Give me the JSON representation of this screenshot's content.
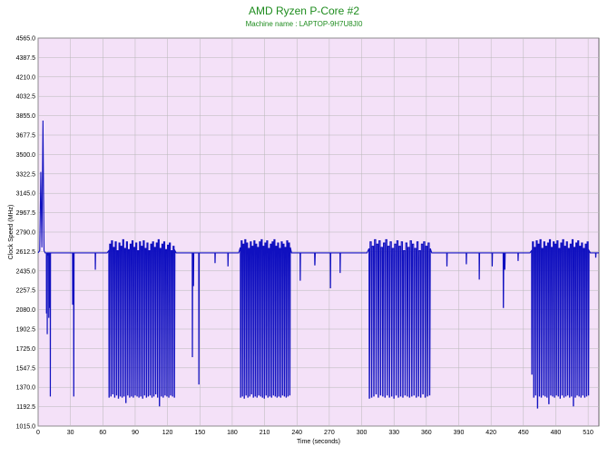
{
  "chart_data": {
    "type": "line",
    "title": "AMD Ryzen P-Core #2",
    "subtitle": "Machine name : LAPTOP-9H7U8JI0",
    "xlabel": "Time (seconds)",
    "ylabel": "Clock Speed (MHz)",
    "xlim": [
      0,
      520
    ],
    "ylim": [
      1015.0,
      4565.0
    ],
    "x_ticks": [
      0,
      30,
      60,
      90,
      120,
      150,
      180,
      210,
      240,
      270,
      300,
      330,
      360,
      390,
      420,
      450,
      480,
      510
    ],
    "y_ticks": [
      "1015.0",
      "1192.5",
      "1370.0",
      "1547.5",
      "1725.0",
      "1902.5",
      "2080.0",
      "2257.5",
      "2435.0",
      "2612.5",
      "2790.0",
      "2967.5",
      "3145.0",
      "3322.5",
      "3500.0",
      "3677.5",
      "3855.0",
      "4032.5",
      "4210.0",
      "4387.5",
      "4565.0"
    ],
    "grid": true,
    "series_color": "#1010c0",
    "baseline": 2600,
    "initial_spikes": [
      [
        0,
        2600
      ],
      [
        1.5,
        2620
      ],
      [
        2.5,
        3340
      ],
      [
        3.5,
        2650
      ],
      [
        4.5,
        3810
      ],
      [
        5.5,
        2620
      ],
      [
        6.5,
        2600
      ]
    ],
    "segments": [
      {
        "start": 7,
        "end": 12,
        "drops": [
          2050,
          1860,
          2580,
          2010,
          2100,
          1290
        ]
      },
      {
        "start": 31,
        "end": 34,
        "drops": [
          2130,
          1290
        ]
      },
      {
        "start": 52,
        "end": 54,
        "drops": [
          2450
        ]
      },
      {
        "start": 64,
        "end": 128,
        "drops": [
          1280,
          1290,
          1310,
          1280,
          1300,
          1270,
          1290,
          1280,
          1290,
          1230,
          1300,
          1280,
          1290,
          1280,
          1300,
          1290,
          1280,
          1290,
          1270,
          1300,
          1280,
          1290,
          1300,
          1280,
          1290,
          1310,
          1280,
          1200,
          1290,
          1280,
          1300,
          1290,
          1280,
          1300,
          1290,
          1280
        ],
        "highs": [
          2620,
          2680,
          2710,
          2650,
          2700,
          2620,
          2690,
          2660,
          2720,
          2640,
          2700,
          2630,
          2680,
          2710,
          2650,
          2690,
          2620,
          2700,
          2660,
          2710,
          2640,
          2690,
          2620,
          2680,
          2700,
          2650,
          2690,
          2720,
          2640,
          2680,
          2700,
          2630,
          2670,
          2690,
          2620,
          2660
        ]
      },
      {
        "start": 142,
        "end": 145,
        "drops": [
          1650,
          2300
        ]
      },
      {
        "start": 148,
        "end": 150,
        "drops": [
          1400
        ]
      },
      {
        "start": 163,
        "end": 165,
        "drops": [
          2510
        ]
      },
      {
        "start": 175,
        "end": 177,
        "drops": [
          2480
        ]
      },
      {
        "start": 186,
        "end": 235,
        "drops": [
          1280,
          1290,
          1270,
          1300,
          1280,
          1290,
          1310,
          1280,
          1290,
          1280,
          1300,
          1290,
          1280,
          1270,
          1300,
          1280,
          1290,
          1280,
          1300,
          1290,
          1280,
          1290,
          1280,
          1300,
          1290,
          1280,
          1290,
          1300
        ],
        "highs": [
          2650,
          2710,
          2680,
          2720,
          2690,
          2640,
          2700,
          2660,
          2710,
          2680,
          2650,
          2700,
          2720,
          2660,
          2690,
          2710,
          2640,
          2680,
          2700,
          2720,
          2660,
          2690,
          2640,
          2700,
          2680,
          2650,
          2710,
          2690
        ]
      },
      {
        "start": 242,
        "end": 244,
        "drops": [
          2350
        ]
      },
      {
        "start": 255,
        "end": 258,
        "drops": [
          2490
        ]
      },
      {
        "start": 270,
        "end": 272,
        "drops": [
          2280
        ]
      },
      {
        "start": 279,
        "end": 281,
        "drops": [
          2420
        ]
      },
      {
        "start": 305,
        "end": 365,
        "drops": [
          1270,
          1280,
          1290,
          1310,
          1280,
          1300,
          1290,
          1280,
          1300,
          1280,
          1290,
          1270,
          1300,
          1280,
          1290,
          1280,
          1300,
          1290,
          1280,
          1290,
          1300,
          1280,
          1290,
          1280,
          1310,
          1280,
          1290,
          1300
        ],
        "highs": [
          2640,
          2700,
          2660,
          2720,
          2680,
          2710,
          2650,
          2690,
          2720,
          2660,
          2700,
          2640,
          2680,
          2710,
          2660,
          2700,
          2620,
          2690,
          2650,
          2710,
          2680,
          2640,
          2700,
          2620,
          2680,
          2700,
          2660,
          2690
        ]
      },
      {
        "start": 378,
        "end": 380,
        "drops": [
          2480
        ]
      },
      {
        "start": 396,
        "end": 398,
        "drops": [
          2500
        ]
      },
      {
        "start": 408,
        "end": 410,
        "drops": [
          2360
        ]
      },
      {
        "start": 420,
        "end": 422,
        "drops": [
          2480
        ]
      },
      {
        "start": 430,
        "end": 434,
        "drops": [
          2100,
          2450
        ]
      },
      {
        "start": 444,
        "end": 446,
        "drops": [
          2530
        ]
      },
      {
        "start": 456,
        "end": 512,
        "drops": [
          1490,
          1280,
          1300,
          1180,
          1290,
          1280,
          1300,
          1290,
          1280,
          1220,
          1300,
          1290,
          1280,
          1300,
          1290,
          1270,
          1300,
          1280,
          1290,
          1300,
          1280,
          1290,
          1200,
          1280,
          1300,
          1290,
          1280,
          1300,
          1280,
          1290,
          1300
        ],
        "highs": [
          2620,
          2700,
          2650,
          2710,
          2680,
          2720,
          2640,
          2700,
          2660,
          2690,
          2720,
          2650,
          2700,
          2680,
          2710,
          2640,
          2690,
          2720,
          2660,
          2700,
          2640,
          2680,
          2720,
          2650,
          2690,
          2710,
          2660,
          2690,
          2640,
          2680,
          2700
        ]
      },
      {
        "start": 516,
        "end": 518,
        "drops": [
          2560
        ]
      }
    ]
  }
}
